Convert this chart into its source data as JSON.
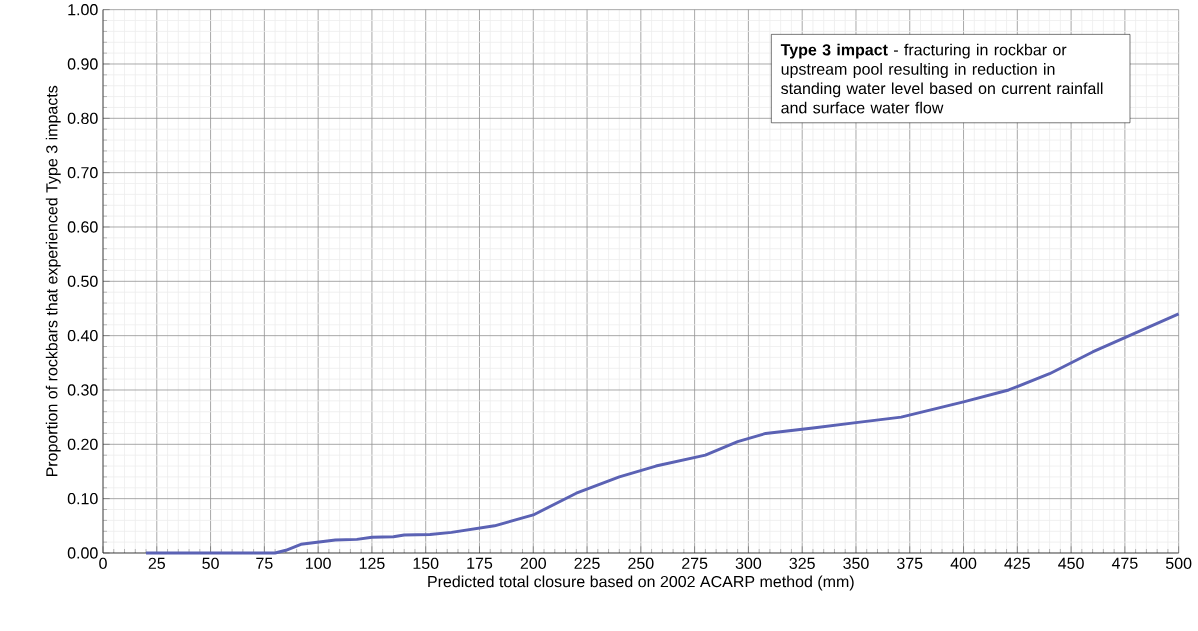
{
  "chart_data": {
    "type": "line",
    "xlabel": "Predicted total closure based on 2002 ACARP method (mm)",
    "ylabel": "Proportion of rockbars that experienced Type 3 impacts",
    "annotations": [
      "**Type 3 impact** - fracturing in rockbar or upstream pool resulting in reduction in standing water level based on current rainfall and surface water flow"
    ],
    "series": [
      {
        "color": "#5b62b4",
        "x": [
          20,
          80,
          85,
          92,
          108,
          118,
          125,
          135,
          140,
          152,
          162,
          182,
          200,
          220,
          240,
          257,
          280,
          295,
          308,
          330,
          350,
          371,
          400,
          421,
          440,
          460,
          500
        ],
        "values": [
          0,
          0,
          0.005,
          0.016,
          0.024,
          0.025,
          0.029,
          0.03,
          0.033,
          0.034,
          0.038,
          0.05,
          0.07,
          0.11,
          0.14,
          0.16,
          0.18,
          0.205,
          0.22,
          0.23,
          0.24,
          0.25,
          0.278,
          0.3,
          0.33,
          0.37,
          0.44
        ]
      }
    ],
    "xlim": [
      0,
      500
    ],
    "xticks": [
      0,
      25,
      50,
      75,
      100,
      125,
      150,
      175,
      200,
      225,
      250,
      275,
      300,
      325,
      350,
      375,
      400,
      425,
      450,
      475,
      500
    ],
    "ylim": [
      0,
      1
    ],
    "yticks": [
      {
        "value": 0,
        "label": "0.00"
      },
      {
        "value": 0.1,
        "label": "0.10"
      },
      {
        "value": 0.2,
        "label": "0.20"
      },
      {
        "value": 0.3,
        "label": "0.30"
      },
      {
        "value": 0.4,
        "label": "0.40"
      },
      {
        "value": 0.5,
        "label": "0.50"
      },
      {
        "value": 0.6,
        "label": "0.60"
      },
      {
        "value": 0.7,
        "label": "0.70"
      },
      {
        "value": 0.8,
        "label": "0.80"
      },
      {
        "value": 0.9,
        "label": "0.90"
      },
      {
        "value": 1,
        "label": "1.00"
      }
    ],
    "grid": true,
    "marker": "none",
    "line_style": "solid"
  }
}
